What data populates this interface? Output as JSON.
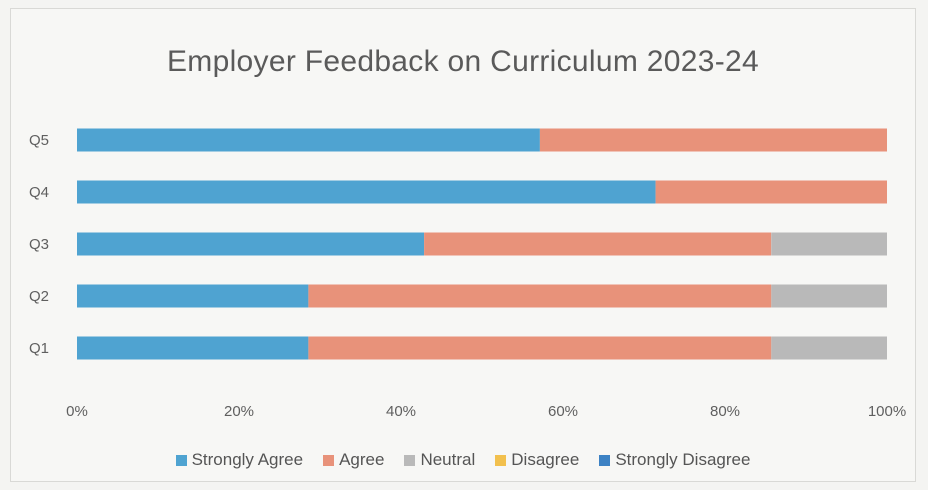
{
  "chart_data": {
    "type": "bar",
    "orientation": "horizontal",
    "stacked": "percent",
    "title": "Employer Feedback on Curriculum 2023-24",
    "categories": [
      "Q1",
      "Q2",
      "Q3",
      "Q4",
      "Q5"
    ],
    "series": [
      {
        "name": "Strongly Agree",
        "color": "#4fa3d1",
        "values": [
          2,
          2,
          3,
          5,
          4
        ]
      },
      {
        "name": "Agree",
        "color": "#e8927a",
        "values": [
          4,
          4,
          3,
          2,
          3
        ]
      },
      {
        "name": "Neutral",
        "color": "#b9b9b9",
        "values": [
          1,
          1,
          1,
          0,
          0
        ]
      },
      {
        "name": "Disagree",
        "color": "#f2c04d",
        "values": [
          0,
          0,
          0,
          0,
          0
        ]
      },
      {
        "name": "Strongly Disagree",
        "color": "#3d82c4",
        "values": [
          0,
          0,
          0,
          0,
          0
        ]
      }
    ],
    "x_ticks": [
      "0%",
      "20%",
      "40%",
      "60%",
      "80%",
      "100%"
    ],
    "xlim": [
      0,
      100
    ],
    "legend_position": "bottom",
    "grid": false
  }
}
